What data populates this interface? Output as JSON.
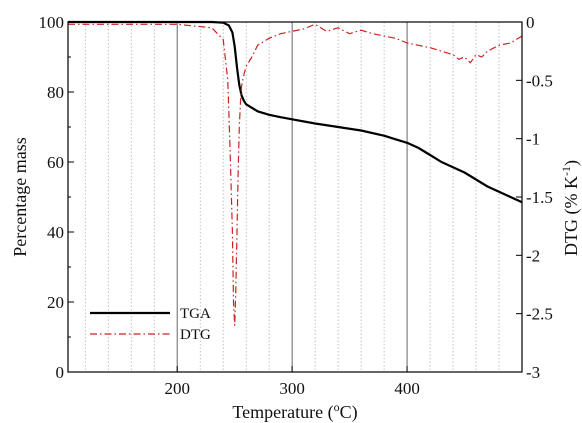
{
  "chart_data": {
    "type": "line",
    "title": "",
    "xlabel": "Temperature (",
    "xlabel_sup": "o",
    "xlabel_tail": "C)",
    "ylabel": "Percentage mass",
    "y2label": "DTG (% K",
    "y2label_sup": "-1",
    "y2label_tail": ")",
    "xlim": [
      105,
      500
    ],
    "ylim": [
      0,
      100
    ],
    "y2lim": [
      -3,
      0
    ],
    "xticks": [
      200,
      300,
      400
    ],
    "xtick_labels": [
      "200",
      "300",
      "400"
    ],
    "yticks": [
      0,
      20,
      40,
      60,
      80,
      100
    ],
    "ytick_labels": [
      "0",
      "20",
      "40",
      "60",
      "80",
      "100"
    ],
    "y2ticks": [
      0,
      -0.5,
      -1,
      -1.5,
      -2,
      -2.5,
      -3
    ],
    "y2tick_labels": [
      "0",
      "-0.5",
      "-1",
      "-1.5",
      "-2",
      "-2.5",
      "-3"
    ],
    "grid": {
      "x_major_every": 100,
      "x_minor_every": 20,
      "y": false
    },
    "legend": {
      "position": "bottom-left",
      "entries": [
        "TGA",
        "DTG"
      ]
    },
    "series": [
      {
        "name": "TGA",
        "axis": "left",
        "color": "#000000",
        "style": "solid",
        "x": [
          105,
          150,
          200,
          230,
          240,
          245,
          248,
          250,
          252,
          254,
          256,
          258,
          260,
          265,
          270,
          280,
          290,
          300,
          320,
          340,
          360,
          380,
          390,
          400,
          410,
          420,
          430,
          440,
          450,
          460,
          470,
          480,
          490,
          500
        ],
        "y": [
          100,
          100,
          100,
          100,
          99.8,
          99,
          97,
          93,
          87,
          82,
          79,
          77.5,
          76.5,
          75.5,
          74.5,
          73.5,
          72.8,
          72.2,
          71,
          70,
          69,
          67.5,
          66.5,
          65.5,
          64,
          62,
          60,
          58.5,
          57,
          55,
          53,
          51.5,
          50,
          48.5
        ]
      },
      {
        "name": "DTG",
        "axis": "right",
        "color": "#cc2222",
        "style": "dashdot",
        "x": [
          105,
          150,
          200,
          230,
          240,
          244,
          246,
          248,
          249,
          250,
          251,
          252,
          253,
          254,
          255,
          256,
          258,
          260,
          265,
          270,
          280,
          290,
          300,
          310,
          320,
          330,
          340,
          350,
          360,
          370,
          380,
          390,
          400,
          410,
          420,
          430,
          440,
          445,
          450,
          455,
          460,
          465,
          470,
          480,
          490,
          500
        ],
        "y": [
          -0.02,
          -0.02,
          -0.02,
          -0.05,
          -0.15,
          -0.5,
          -1.1,
          -1.8,
          -2.4,
          -2.6,
          -2.3,
          -1.8,
          -1.3,
          -0.9,
          -0.7,
          -0.55,
          -0.45,
          -0.38,
          -0.3,
          -0.2,
          -0.14,
          -0.1,
          -0.08,
          -0.06,
          -0.02,
          -0.08,
          -0.05,
          -0.1,
          -0.07,
          -0.1,
          -0.12,
          -0.14,
          -0.18,
          -0.2,
          -0.22,
          -0.25,
          -0.28,
          -0.32,
          -0.3,
          -0.35,
          -0.28,
          -0.3,
          -0.25,
          -0.2,
          -0.18,
          -0.12
        ]
      }
    ]
  }
}
